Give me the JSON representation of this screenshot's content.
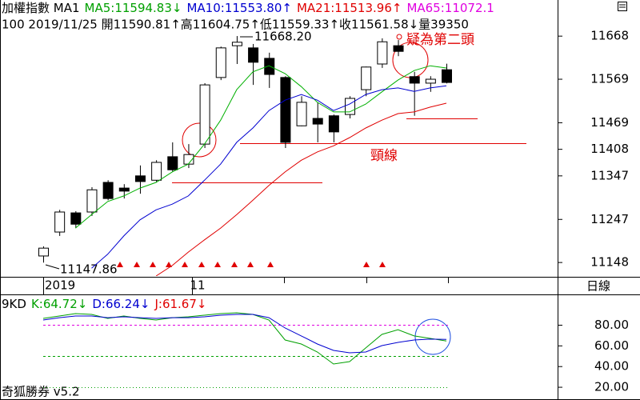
{
  "chart_data": [
    {
      "type": "candlestick",
      "title": "加權指數 MA1",
      "header_items": [
        {
          "text": "MA5:11594.83↓",
          "color": "#00a000"
        },
        {
          "text": "MA10:11553.80↑",
          "color": "#0000d0"
        },
        {
          "text": "MA21:11513.96↑",
          "color": "#e00000"
        },
        {
          "text": "MA65:11072.1",
          "color": "#e000e0"
        }
      ],
      "subtitle": "100 2019/11/25 開11590.81↑高11604.75↑低11559.33↑收11561.58↓量39350",
      "categories": [
        "2019",
        null,
        null,
        null,
        null,
        null,
        null,
        null,
        null,
        "11",
        null,
        null,
        null,
        null,
        null,
        null,
        null,
        null,
        null,
        null,
        null,
        null,
        null,
        null,
        null,
        null
      ],
      "open": [
        11163,
        11218,
        11262,
        11264,
        11332,
        11319,
        11347,
        11337,
        11391,
        11374,
        11420,
        11573,
        11646,
        11641,
        11617,
        11573,
        11462,
        11479,
        11485,
        11488,
        11545,
        11604,
        11646,
        11575,
        11560,
        11590.81
      ],
      "high": [
        11185,
        11269,
        11266,
        11321,
        11337,
        11328,
        11371,
        11383,
        11424,
        11420,
        11560,
        11644,
        11668.2,
        11650,
        11630,
        11576,
        11530,
        11516,
        11488,
        11530,
        11598,
        11663,
        11659,
        11586,
        11576,
        11604.75
      ],
      "low": [
        11147.86,
        11209,
        11227,
        11255,
        11291,
        11295,
        11306,
        11332,
        11356,
        11365,
        11411,
        11567,
        11604,
        11556,
        11549,
        11411,
        11461,
        11424,
        11424,
        11479,
        11530,
        11595,
        11622,
        11485,
        11540,
        11559.33
      ],
      "close": [
        11181,
        11264,
        11236,
        11315,
        11295,
        11312,
        11334,
        11378,
        11361,
        11396,
        11556,
        11641,
        11654,
        11608,
        11580,
        11424,
        11516,
        11466,
        11448,
        11525,
        11597,
        11655,
        11633,
        11560,
        11569,
        11561.58
      ],
      "series": [
        {
          "name": "MA5",
          "color": "#00b000",
          "values": [
            null,
            null,
            11227,
            11258,
            11288,
            11301,
            11319,
            11332,
            11356,
            11374,
            11420,
            11475,
            11545,
            11586,
            11600,
            11582,
            11552,
            11516,
            11494,
            11494,
            11512,
            11540,
            11567,
            11589,
            11600,
            11594.83
          ]
        },
        {
          "name": "MA10",
          "color": "#0000d0",
          "values": [
            null,
            null,
            null,
            11135,
            11167,
            11209,
            11246,
            11269,
            11282,
            11301,
            11337,
            11374,
            11424,
            11457,
            11497,
            11521,
            11534,
            11521,
            11497,
            11512,
            11534,
            11545,
            11549,
            11541,
            11549,
            11553.8
          ]
        },
        {
          "name": "MA21",
          "color": "#e00000",
          "values": [
            null,
            null,
            null,
            null,
            null,
            null,
            null,
            11117,
            11141,
            11172,
            11200,
            11227,
            11258,
            11291,
            11325,
            11356,
            11383,
            11402,
            11416,
            11435,
            11457,
            11475,
            11490,
            11494,
            11505,
            11513.96
          ]
        }
      ],
      "ylim": [
        11117,
        11751
      ],
      "yticks": [
        11668,
        11569,
        11469,
        11408,
        11347,
        11247,
        11148
      ],
      "annotations": [
        "11668.20",
        "11147.86",
        "疑為第二頭",
        "頸線"
      ],
      "period_label": "日線"
    },
    {
      "type": "line",
      "title": "9KD",
      "header_items": [
        {
          "text": "K:64.72↓",
          "color": "#00a000"
        },
        {
          "text": "D:66.24↓",
          "color": "#0000d0"
        },
        {
          "text": "J:61.67↓",
          "color": "#e00000"
        }
      ],
      "series": [
        {
          "name": "K",
          "color": "#00a000",
          "values": [
            86.6,
            88.9,
            91.2,
            90.4,
            86.6,
            88.9,
            86.6,
            85.0,
            87.3,
            88.1,
            89.7,
            91.2,
            92.0,
            90.4,
            85.0,
            65.7,
            61.8,
            54.1,
            42.5,
            44.8,
            58.0,
            71.1,
            75.7,
            69.6,
            67.2,
            64.72
          ]
        },
        {
          "name": "D",
          "color": "#0000d0",
          "values": [
            85.0,
            87.3,
            88.9,
            88.9,
            87.3,
            88.1,
            87.3,
            86.6,
            87.3,
            87.3,
            88.1,
            89.7,
            90.4,
            90.4,
            87.3,
            77.3,
            69.6,
            61.8,
            55.6,
            53.3,
            54.1,
            60.3,
            63.4,
            65.7,
            66.5,
            66.24
          ]
        }
      ],
      "reference_lines": [
        {
          "value": 80,
          "color": "#e000e0"
        },
        {
          "value": 50,
          "color": "#00a000"
        },
        {
          "value": 20,
          "color": "#00a000"
        }
      ],
      "ylim": [
        10,
        109
      ],
      "yticks": [
        {
          "value": 80,
          "label": "80.00"
        },
        {
          "value": 60,
          "label": "60.00"
        },
        {
          "value": 40,
          "label": "40.00"
        },
        {
          "value": 20,
          "label": "20.00"
        }
      ],
      "footer": "奇狐勝券 v5.2"
    }
  ]
}
